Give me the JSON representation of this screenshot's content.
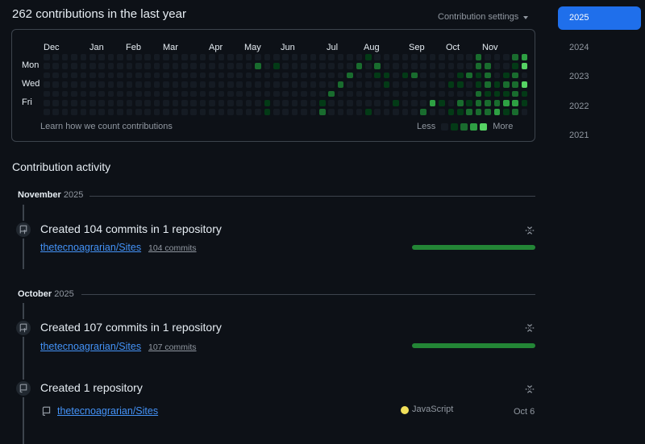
{
  "header": {
    "contributions_title": "262 contributions in the last year",
    "settings_label": "Contribution settings"
  },
  "calendar": {
    "months": [
      "Dec",
      "Jan",
      "Feb",
      "Mar",
      "Apr",
      "May",
      "Jun",
      "Jul",
      "Aug",
      "Sep",
      "Oct",
      "Nov"
    ],
    "weekdays": [
      "Mon",
      "Wed",
      "Fri"
    ],
    "learn_link": "Learn how we count contributions",
    "legend_less": "Less",
    "legend_more": "More",
    "colors": {
      "level0": "#151b23",
      "level1": "#033a16",
      "level2": "#196c2e",
      "level3": "#2ea043",
      "level4": "#56d364"
    },
    "weeks": 53,
    "levels": {
      "23": [
        0,
        2,
        0,
        0,
        0,
        0,
        0
      ],
      "24": [
        0,
        0,
        0,
        0,
        0,
        1,
        1
      ],
      "25": [
        0,
        1,
        0,
        0,
        0,
        0,
        0
      ],
      "30": [
        0,
        0,
        0,
        0,
        0,
        1,
        2
      ],
      "31": [
        0,
        0,
        0,
        0,
        2,
        0,
        0
      ],
      "32": [
        0,
        0,
        0,
        2,
        0,
        0,
        0
      ],
      "33": [
        0,
        0,
        2,
        0,
        0,
        0,
        0
      ],
      "34": [
        0,
        2,
        0,
        0,
        0,
        0,
        0
      ],
      "35": [
        1,
        0,
        0,
        0,
        0,
        0,
        1
      ],
      "36": [
        0,
        2,
        1,
        0,
        0,
        0,
        0
      ],
      "37": [
        0,
        0,
        1,
        1,
        0,
        0,
        0
      ],
      "38": [
        0,
        0,
        0,
        0,
        0,
        1,
        0
      ],
      "39": [
        0,
        0,
        1,
        0,
        0,
        0,
        0
      ],
      "40": [
        0,
        0,
        2,
        0,
        0,
        0,
        0
      ],
      "41": [
        0,
        0,
        0,
        0,
        0,
        0,
        2
      ],
      "42": [
        0,
        0,
        0,
        0,
        0,
        3,
        0
      ],
      "43": [
        0,
        0,
        0,
        0,
        0,
        1,
        0
      ],
      "44": [
        0,
        0,
        0,
        1,
        0,
        0,
        1
      ],
      "45": [
        0,
        0,
        1,
        1,
        0,
        2,
        1
      ],
      "46": [
        0,
        0,
        2,
        0,
        0,
        1,
        2
      ],
      "47": [
        2,
        2,
        1,
        1,
        2,
        2,
        2
      ],
      "48": [
        0,
        2,
        2,
        2,
        1,
        2,
        2
      ],
      "49": [
        0,
        0,
        0,
        1,
        1,
        2,
        3
      ],
      "50": [
        0,
        0,
        1,
        2,
        1,
        3,
        1
      ],
      "51": [
        2,
        1,
        2,
        2,
        2,
        3,
        2
      ],
      "52": [
        3,
        4,
        0,
        4,
        1,
        1,
        0
      ]
    }
  },
  "years": [
    "2025",
    "2024",
    "2023",
    "2022",
    "2021"
  ],
  "activity": {
    "title": "Contribution activity",
    "nov_label": "November",
    "nov_year": "2025",
    "nov_event_title": "Created 104 commits in 1 repository",
    "nov_repo": "thetecnoagrarian/Sites",
    "nov_commits": "104 commits",
    "nov_fraction": 1.0,
    "oct_label": "October",
    "oct_year": "2025",
    "oct_event_title": "Created 107 commits in 1 repository",
    "oct_repo": "thetecnoagrarian/Sites",
    "oct_commits": "107 commits",
    "oct_fraction": 1.0,
    "created_title": "Created 1 repository",
    "created_repo": "thetecnoagrarian/Sites",
    "created_language": "JavaScript",
    "language_color": "#f1e05a",
    "created_date": "Oct 6"
  }
}
